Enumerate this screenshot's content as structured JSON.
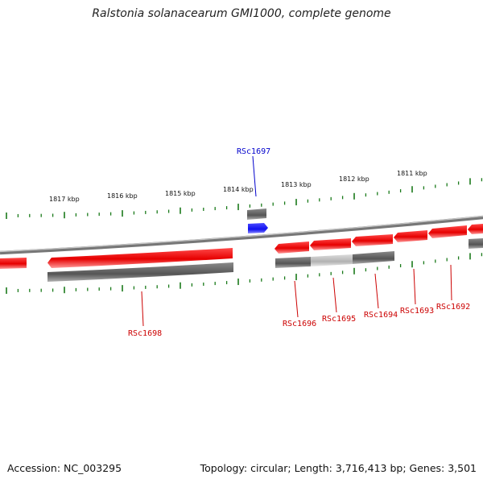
{
  "title": "Ralstonia solanacearum GMI1000, complete genome",
  "footer": {
    "accession": "Accession: NC_003295",
    "summary": "Topology: circular; Length: 3,716,413 bp; Genes: 3,501"
  },
  "colors": {
    "gene_forward": "#e60000",
    "gene_highlight": "#1414ff",
    "feature_dark": "#5a5a5a",
    "feature_light": "#b4b4b4",
    "ticks": "#1a7a1a",
    "label_red": "#cc0000",
    "label_blue": "#0000cc"
  },
  "scale_labels": [
    "1817 kbp",
    "1816 kbp",
    "1815 kbp",
    "1814 kbp",
    "1813 kbp",
    "1812 kbp",
    "1811 kbp"
  ],
  "gene_labels": [
    {
      "name": "RSc1697",
      "color": "blue"
    },
    {
      "name": "RSc1698",
      "color": "red"
    },
    {
      "name": "RSc1696",
      "color": "red"
    },
    {
      "name": "RSc1695",
      "color": "red"
    },
    {
      "name": "RSc1694",
      "color": "red"
    },
    {
      "name": "RSc1693",
      "color": "red"
    },
    {
      "name": "RSc1692",
      "color": "red"
    }
  ]
}
